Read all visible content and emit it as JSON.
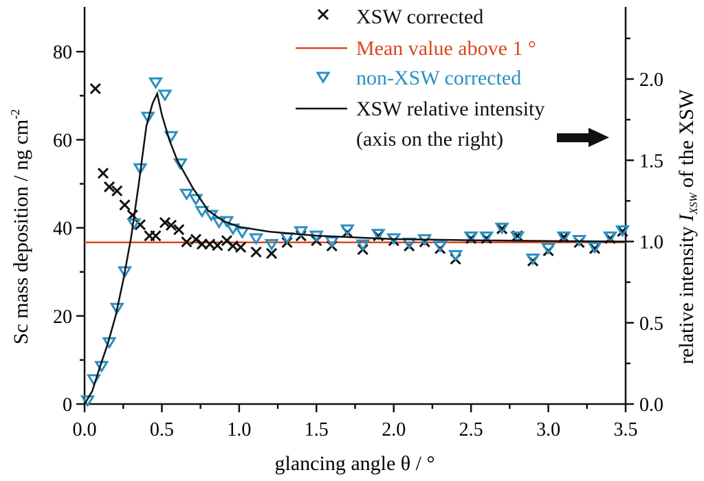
{
  "chart_data": {
    "type": "scatter",
    "title": "",
    "xlabel": "glancing angle θ / °",
    "ylabel": "Sc mass deposition / ng cm",
    "ylabel_sup": "-2",
    "y2label_pre": "relative intensity ",
    "y2label_var": "I",
    "y2label_sub": "XSW",
    "y2label_post": " of the XSW",
    "xlim": [
      0,
      3.5
    ],
    "ylim": [
      0,
      88
    ],
    "y2lim": [
      0,
      2.35
    ],
    "xticks": [
      "0.0",
      "0.5",
      "1.0",
      "1.5",
      "2.0",
      "2.5",
      "3.0",
      "3.5"
    ],
    "yticks": [
      "0",
      "20",
      "40",
      "60",
      "80"
    ],
    "y2ticks": [
      "0.0",
      "0.5",
      "1.0",
      "1.5",
      "2.0"
    ],
    "legend_position": "top-right",
    "legend_note": "(axis on the right)",
    "colors": {
      "xsw": "#111111",
      "mean": "#d9481f",
      "nonxsw": "#2a8fc0",
      "curve": "#111111"
    },
    "series": [
      {
        "name": "XSW corrected",
        "kind": "cross",
        "axis": "left",
        "x": [
          0.07,
          0.12,
          0.16,
          0.21,
          0.26,
          0.31,
          0.36,
          0.42,
          0.46,
          0.52,
          0.56,
          0.61,
          0.66,
          0.72,
          0.76,
          0.81,
          0.86,
          0.92,
          0.96,
          1.01,
          1.11,
          1.21,
          1.31,
          1.4,
          1.5,
          1.6,
          1.7,
          1.8,
          1.9,
          2.0,
          2.1,
          2.2,
          2.3,
          2.4,
          2.5,
          2.6,
          2.7,
          2.8,
          2.9,
          3.0,
          3.1,
          3.2,
          3.3,
          3.4,
          3.48
        ],
        "y": [
          71.6,
          52.4,
          49.3,
          48.4,
          45.2,
          42.9,
          40.7,
          38.2,
          38.2,
          41.2,
          40.6,
          39.6,
          36.8,
          37.4,
          36.3,
          36.3,
          36.0,
          37.1,
          35.9,
          35.6,
          34.5,
          34.2,
          36.7,
          38.2,
          37.1,
          35.9,
          39.0,
          35.1,
          38.2,
          37.1,
          35.9,
          36.8,
          35.3,
          32.9,
          37.6,
          37.6,
          39.8,
          38.2,
          32.5,
          34.8,
          37.9,
          36.7,
          35.3,
          37.6,
          39.2
        ]
      },
      {
        "name": "Mean value above 1 °",
        "kind": "hline",
        "axis": "left",
        "y": 36.7
      },
      {
        "name": "non-XSW corrected",
        "kind": "triangle",
        "axis": "left",
        "x": [
          0.02,
          0.06,
          0.11,
          0.16,
          0.21,
          0.26,
          0.32,
          0.36,
          0.41,
          0.46,
          0.52,
          0.56,
          0.62,
          0.66,
          0.72,
          0.76,
          0.82,
          0.87,
          0.92,
          0.96,
          1.02,
          1.11,
          1.21,
          1.31,
          1.4,
          1.5,
          1.6,
          1.7,
          1.8,
          1.9,
          2.0,
          2.1,
          2.2,
          2.3,
          2.4,
          2.5,
          2.6,
          2.7,
          2.8,
          2.9,
          3.0,
          3.1,
          3.2,
          3.3,
          3.4,
          3.48
        ],
        "y": [
          0.8,
          5.6,
          8.6,
          14.0,
          21.8,
          30.1,
          41.0,
          53.5,
          65.2,
          73.0,
          70.2,
          60.8,
          54.6,
          47.7,
          46.5,
          43.8,
          42.9,
          41.3,
          41.5,
          39.8,
          39.0,
          37.6,
          36.3,
          37.8,
          39.2,
          38.2,
          36.9,
          39.6,
          36.2,
          38.6,
          37.6,
          36.6,
          37.4,
          35.9,
          33.8,
          38.0,
          38.0,
          40.0,
          38.0,
          33.0,
          35.4,
          38.0,
          37.2,
          35.6,
          38.0,
          39.4
        ]
      },
      {
        "name": "XSW relative intensity",
        "kind": "line",
        "axis": "right",
        "x": [
          0,
          0.05,
          0.1,
          0.15,
          0.2,
          0.25,
          0.3,
          0.35,
          0.4,
          0.44,
          0.47,
          0.5,
          0.55,
          0.6,
          0.7,
          0.8,
          0.9,
          1.0,
          1.2,
          1.5,
          2.0,
          2.5,
          3.0,
          3.5
        ],
        "y": [
          0,
          0.08,
          0.23,
          0.37,
          0.54,
          0.76,
          1.02,
          1.35,
          1.71,
          1.85,
          1.91,
          1.78,
          1.62,
          1.5,
          1.33,
          1.19,
          1.125,
          1.09,
          1.06,
          1.036,
          1.015,
          1.008,
          1.003,
          1.0
        ]
      }
    ]
  }
}
